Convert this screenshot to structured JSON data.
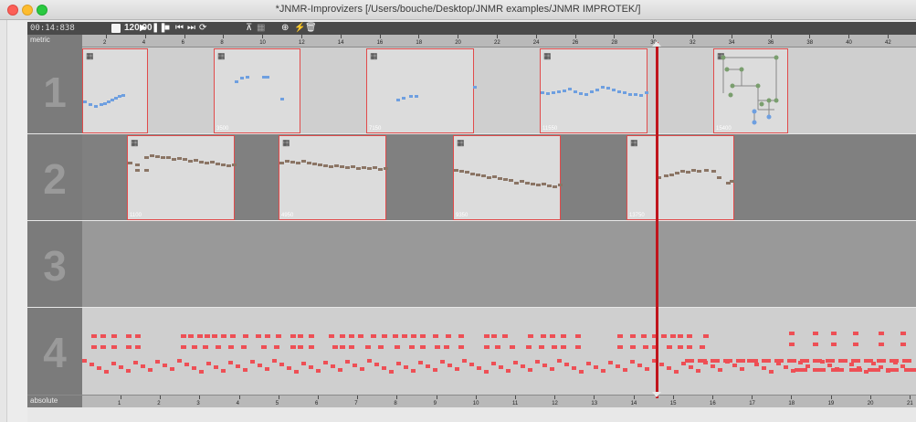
{
  "window": {
    "title": "*JNMR-Improvizers  [/Users/bouche/Desktop/JNMR examples/JNMR IMPROTEK/]"
  },
  "transport": {
    "time": "00:14:838",
    "tempo": "120.00",
    "icons": [
      "play-icon",
      "pause-icon",
      "stop-icon",
      "previous-icon",
      "next-icon",
      "loop-icon",
      "tree-icon",
      "grid-icon",
      "link-icon",
      "bolt-icon",
      "trash-icon"
    ]
  },
  "ruler_top": {
    "label": "metric",
    "ticks": [
      "2",
      "4",
      "6",
      "8",
      "10",
      "12",
      "14",
      "16",
      "18",
      "20",
      "22",
      "24",
      "26",
      "28",
      "30",
      "32",
      "34",
      "36",
      "38",
      "40",
      "42"
    ]
  },
  "ruler_bottom": {
    "label": "absolute",
    "ticks": [
      "1",
      "2",
      "3",
      "4",
      "5",
      "6",
      "7",
      "8",
      "9",
      "10",
      "11",
      "12",
      "13",
      "14",
      "15",
      "16",
      "17",
      "18",
      "19",
      "20",
      "21"
    ]
  },
  "tracks": [
    {
      "number": "1",
      "clips": [
        {
          "label": ""
        },
        {
          "label": "3500"
        },
        {
          "label": "7150"
        },
        {
          "label": "11550"
        },
        {
          "label": "15400"
        }
      ]
    },
    {
      "number": "2",
      "clips": [
        {
          "label": "1100"
        },
        {
          "label": "4950"
        },
        {
          "label": "9350"
        },
        {
          "label": "13750"
        }
      ]
    },
    {
      "number": "3"
    },
    {
      "number": "4"
    }
  ],
  "playhead": {
    "position_seconds": 14.838
  },
  "colors": {
    "clip_border": "#e14b4b",
    "blue_notes": "#6e9fe0",
    "brown_notes": "#8b7565",
    "red_notes": "#ee4f55",
    "playhead": "#c0151c"
  }
}
